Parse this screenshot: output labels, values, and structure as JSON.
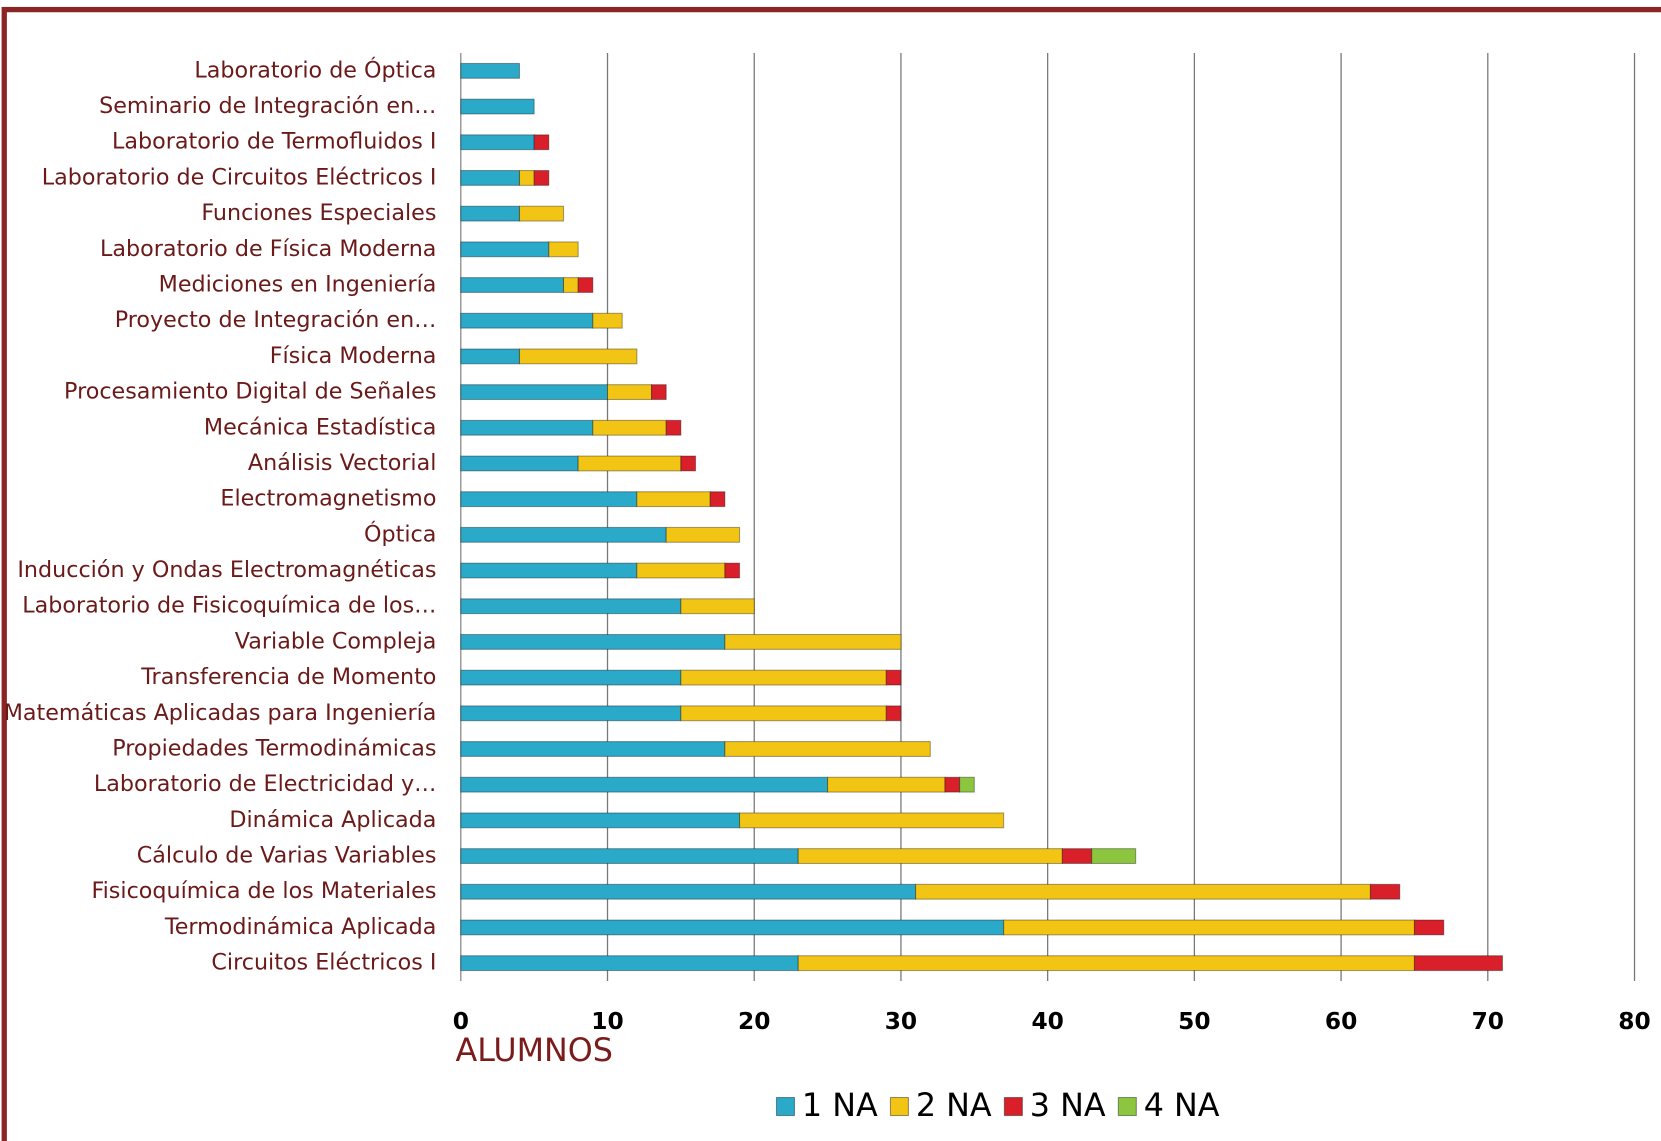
{
  "chart_data": {
    "type": "bar",
    "orientation": "horizontal",
    "stacked": true,
    "x_label": "ALUMNOS",
    "categories": [
      "Laboratorio de Óptica",
      "Seminario de Integración en…",
      "Laboratorio de Termofluidos I",
      "Laboratorio de Circuitos Eléctricos I",
      "Funciones Especiales",
      "Laboratorio de Física Moderna",
      "Mediciones en Ingeniería",
      "Proyecto de Integración en…",
      "Física Moderna",
      "Procesamiento Digital de Señales",
      "Mecánica Estadística",
      "Análisis Vectorial",
      "Electromagnetismo",
      "Óptica",
      "Inducción y Ondas Electromagnéticas",
      "Laboratorio de Fisicoquímica de los…",
      "Variable Compleja",
      "Transferencia de Momento",
      "Matemáticas Aplicadas para Ingeniería",
      "Propiedades Termodinámicas",
      "Laboratorio de Electricidad y…",
      "Dinámica Aplicada",
      "Cálculo de Varias Variables",
      "Fisicoquímica de los Materiales",
      "Termodinámica Aplicada",
      "Circuitos Eléctricos I"
    ],
    "series": [
      {
        "name": "1 NA",
        "color": "#2aa9c9",
        "values": [
          4,
          5,
          5,
          4,
          4,
          6,
          7,
          9,
          4,
          10,
          9,
          8,
          12,
          14,
          12,
          15,
          18,
          15,
          15,
          18,
          25,
          19,
          23,
          31,
          37,
          23
        ]
      },
      {
        "name": "2 NA",
        "color": "#f2c414",
        "values": [
          null,
          null,
          null,
          1,
          3,
          2,
          1,
          2,
          8,
          3,
          5,
          7,
          5,
          5,
          6,
          5,
          12,
          14,
          14,
          14,
          8,
          18,
          18,
          31,
          28,
          42
        ]
      },
      {
        "name": "3 NA",
        "color": "#d9202a",
        "values": [
          null,
          null,
          1,
          1,
          null,
          null,
          1,
          null,
          null,
          1,
          1,
          1,
          1,
          null,
          1,
          null,
          null,
          1,
          1,
          null,
          1,
          null,
          2,
          2,
          2,
          6
        ]
      },
      {
        "name": "4 NA",
        "color": "#8cc63f",
        "values": [
          null,
          null,
          null,
          null,
          null,
          null,
          null,
          null,
          null,
          null,
          null,
          null,
          null,
          null,
          null,
          null,
          null,
          null,
          null,
          null,
          1,
          null,
          3,
          null,
          null,
          null
        ]
      }
    ],
    "xlim": [
      0,
      80
    ],
    "xticks": [
      0,
      10,
      20,
      30,
      40,
      50,
      60,
      70,
      80
    ],
    "grid": true,
    "legend": "bottom"
  }
}
